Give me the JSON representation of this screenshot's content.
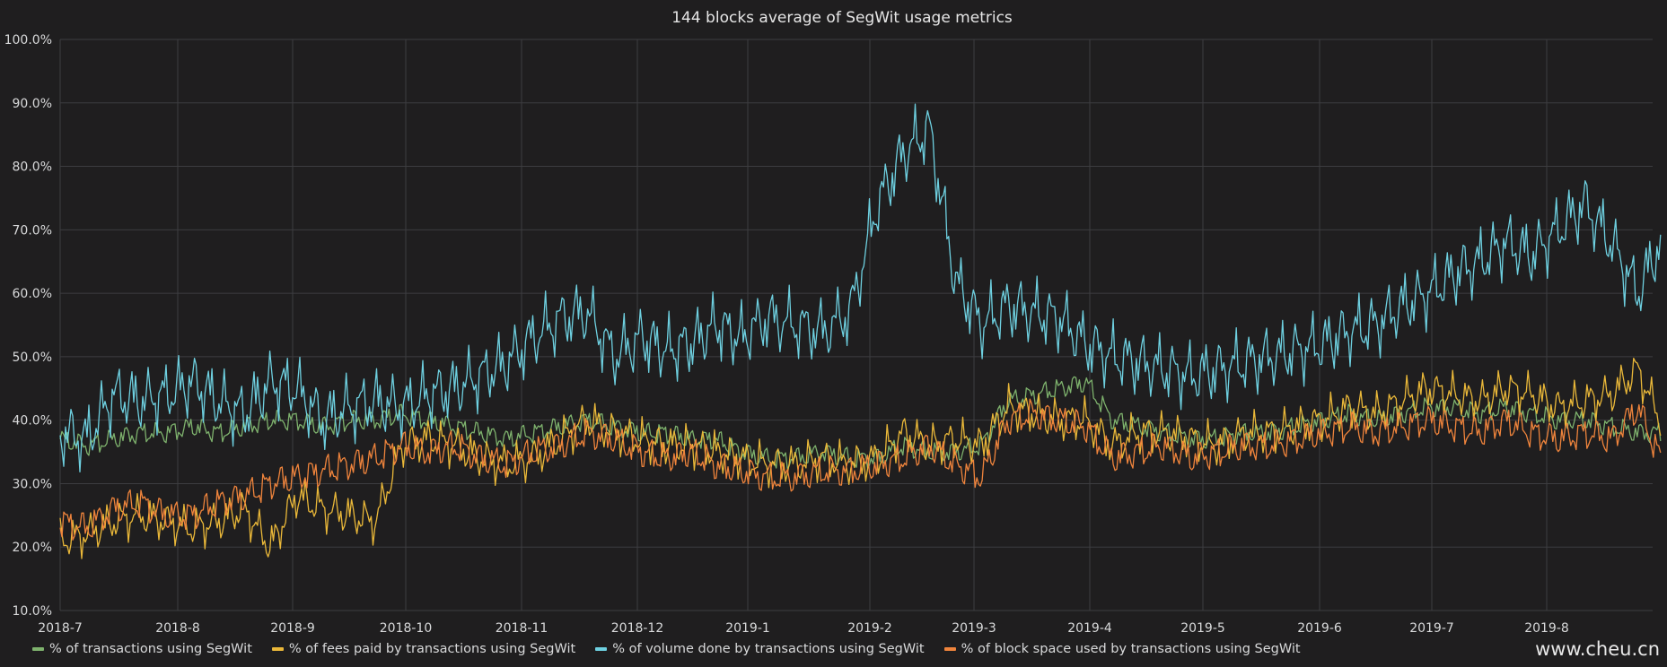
{
  "chart_data": {
    "type": "line",
    "title": "144 blocks average of SegWit usage metrics",
    "x_ticks": [
      "2018-7",
      "2018-8",
      "2018-9",
      "2018-10",
      "2018-11",
      "2018-12",
      "2019-1",
      "2019-2",
      "2019-3",
      "2019-4",
      "2019-5",
      "2019-6",
      "2019-7",
      "2019-8"
    ],
    "y_ticks": [
      "10.0%",
      "20.0%",
      "30.0%",
      "40.0%",
      "50.0%",
      "60.0%",
      "70.0%",
      "80.0%",
      "90.0%",
      "100.0%"
    ],
    "ylim": [
      10,
      100
    ],
    "y_unit": "%",
    "grid": true,
    "legend_position": "bottom-left",
    "x": [
      "2018-07-01",
      "2018-07-08",
      "2018-07-15",
      "2018-07-22",
      "2018-07-29",
      "2018-08-05",
      "2018-08-12",
      "2018-08-19",
      "2018-08-26",
      "2018-09-02",
      "2018-09-09",
      "2018-09-16",
      "2018-09-23",
      "2018-09-30",
      "2018-10-07",
      "2018-10-14",
      "2018-10-21",
      "2018-10-28",
      "2018-11-04",
      "2018-11-11",
      "2018-11-18",
      "2018-11-25",
      "2018-12-02",
      "2018-12-09",
      "2018-12-16",
      "2018-12-23",
      "2018-12-30",
      "2019-01-06",
      "2019-01-13",
      "2019-01-20",
      "2019-01-27",
      "2019-02-03",
      "2019-02-10",
      "2019-02-17",
      "2019-02-24",
      "2019-03-03",
      "2019-03-10",
      "2019-03-17",
      "2019-03-24",
      "2019-03-31",
      "2019-04-07",
      "2019-04-14",
      "2019-04-21",
      "2019-04-28",
      "2019-05-05",
      "2019-05-12",
      "2019-05-19",
      "2019-05-26",
      "2019-06-02",
      "2019-06-09",
      "2019-06-16",
      "2019-06-23",
      "2019-06-30",
      "2019-07-07",
      "2019-07-14",
      "2019-07-21",
      "2019-07-28",
      "2019-08-04",
      "2019-08-11",
      "2019-08-18",
      "2019-08-25",
      "2019-08-31"
    ],
    "series": [
      {
        "name": "% of transactions using SegWit",
        "color": "#7eb26d",
        "values": [
          37,
          36,
          37,
          38,
          38,
          39,
          38,
          39,
          40,
          40,
          39,
          40,
          40,
          41,
          40,
          39,
          38,
          37,
          38,
          39,
          40,
          39,
          38,
          38,
          37,
          37,
          35,
          34,
          34,
          35,
          34,
          34,
          36,
          35,
          35,
          36,
          43,
          44,
          45,
          46,
          40,
          39,
          38,
          37,
          37,
          38,
          38,
          39,
          40,
          41,
          40,
          41,
          42,
          42,
          41,
          42,
          41,
          40,
          40,
          39,
          38,
          38
        ]
      },
      {
        "name": "% of fees paid by transactions using SegWit",
        "color": "#eab839",
        "values": [
          21,
          22,
          24,
          25,
          24,
          23,
          24,
          26,
          20,
          28,
          26,
          25,
          24,
          36,
          37,
          36,
          34,
          33,
          34,
          37,
          40,
          38,
          37,
          36,
          36,
          35,
          34,
          33,
          33,
          34,
          33,
          34,
          38,
          36,
          37,
          36,
          42,
          41,
          40,
          40,
          36,
          38,
          38,
          37,
          36,
          38,
          38,
          39,
          40,
          42,
          41,
          43,
          45,
          44,
          43,
          45,
          44,
          42,
          43,
          44,
          48,
          40
        ]
      },
      {
        "name": "% of volume done by transactions using SegWit",
        "color": "#6ed0e0",
        "values": [
          38,
          37,
          44,
          43,
          44,
          46,
          43,
          41,
          46,
          45,
          40,
          42,
          43,
          42,
          44,
          45,
          47,
          49,
          53,
          56,
          57,
          50,
          53,
          51,
          52,
          55,
          53,
          56,
          55,
          54,
          57,
          74,
          82,
          86,
          62,
          55,
          58,
          57,
          56,
          52,
          50,
          49,
          48,
          47,
          48,
          49,
          50,
          51,
          52,
          54,
          55,
          58,
          60,
          63,
          65,
          68,
          66,
          70,
          74,
          68,
          60,
          68
        ]
      },
      {
        "name": "% of block space used by transactions using SegWit",
        "color": "#ef843c",
        "values": [
          24,
          23,
          26,
          27,
          25,
          25,
          27,
          28,
          30,
          31,
          32,
          33,
          34,
          36,
          35,
          36,
          34,
          33,
          35,
          36,
          38,
          37,
          35,
          34,
          35,
          33,
          32,
          31,
          31,
          32,
          32,
          33,
          34,
          36,
          33,
          31,
          40,
          41,
          40,
          39,
          34,
          35,
          36,
          34,
          35,
          36,
          36,
          37,
          38,
          39,
          38,
          39,
          40,
          39,
          38,
          40,
          38,
          37,
          38,
          37,
          42,
          34
        ]
      }
    ]
  },
  "watermark": "www.cheu.cn"
}
